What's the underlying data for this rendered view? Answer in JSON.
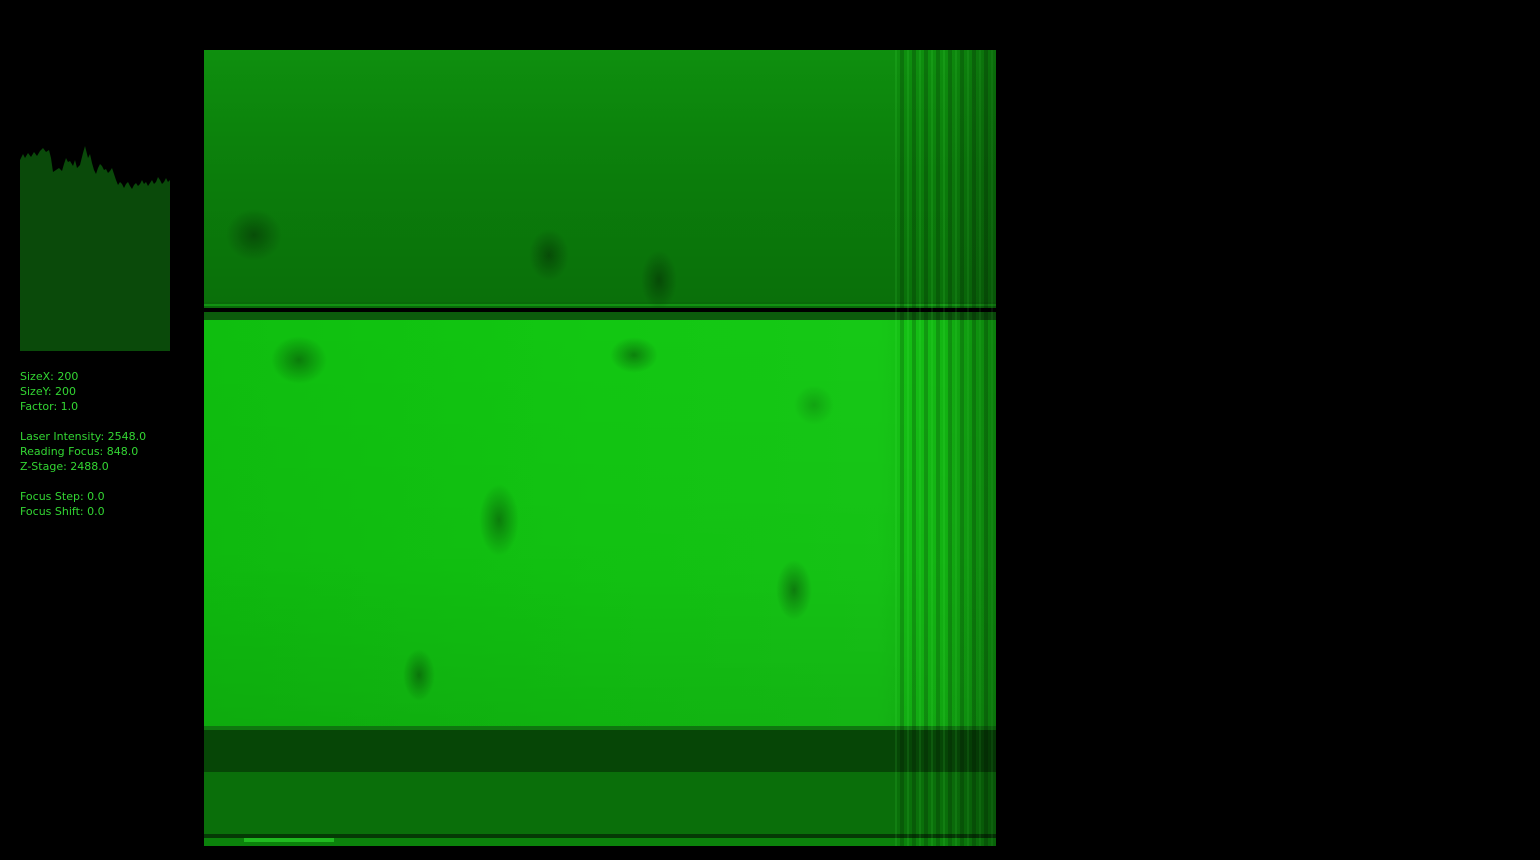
{
  "info": {
    "size_x": "SizeX: 200",
    "size_y": "SizeY: 200",
    "factor": "Factor: 1.0",
    "laser_intensity": "Laser Intensity: 2548.0",
    "reading_focus": "Reading Focus: 848.0",
    "z_stage": "Z-Stage: 2488.0",
    "focus_step": "Focus Step: 0.0",
    "focus_shift": "Focus Shift: 0.0"
  },
  "colors": {
    "background": "#000000",
    "text": "#33d633",
    "histogram_fill": "#0a4a0a",
    "scan_bright": "#14d214",
    "scan_mid": "#0c9a0c",
    "scan_dark": "#063e06"
  },
  "icons": {
    "histogram": "intensity-histogram",
    "scan": "laser-scan-image"
  }
}
